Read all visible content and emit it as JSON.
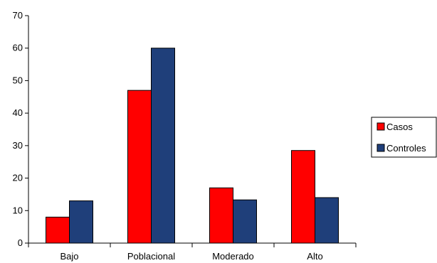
{
  "chart_data": {
    "type": "bar",
    "categories": [
      "Bajo",
      "Poblacional",
      "Moderado",
      "Alto"
    ],
    "series": [
      {
        "name": "Casos",
        "values": [
          8,
          47,
          17,
          28.5
        ],
        "color": "#ff0000"
      },
      {
        "name": "Controles",
        "values": [
          13,
          60,
          13.3,
          14
        ],
        "color": "#1f3f7a"
      }
    ],
    "ylim": [
      0,
      70
    ],
    "yticks": [
      0,
      10,
      20,
      30,
      40,
      50,
      60,
      70
    ],
    "grid": false,
    "legend_position": "right"
  }
}
